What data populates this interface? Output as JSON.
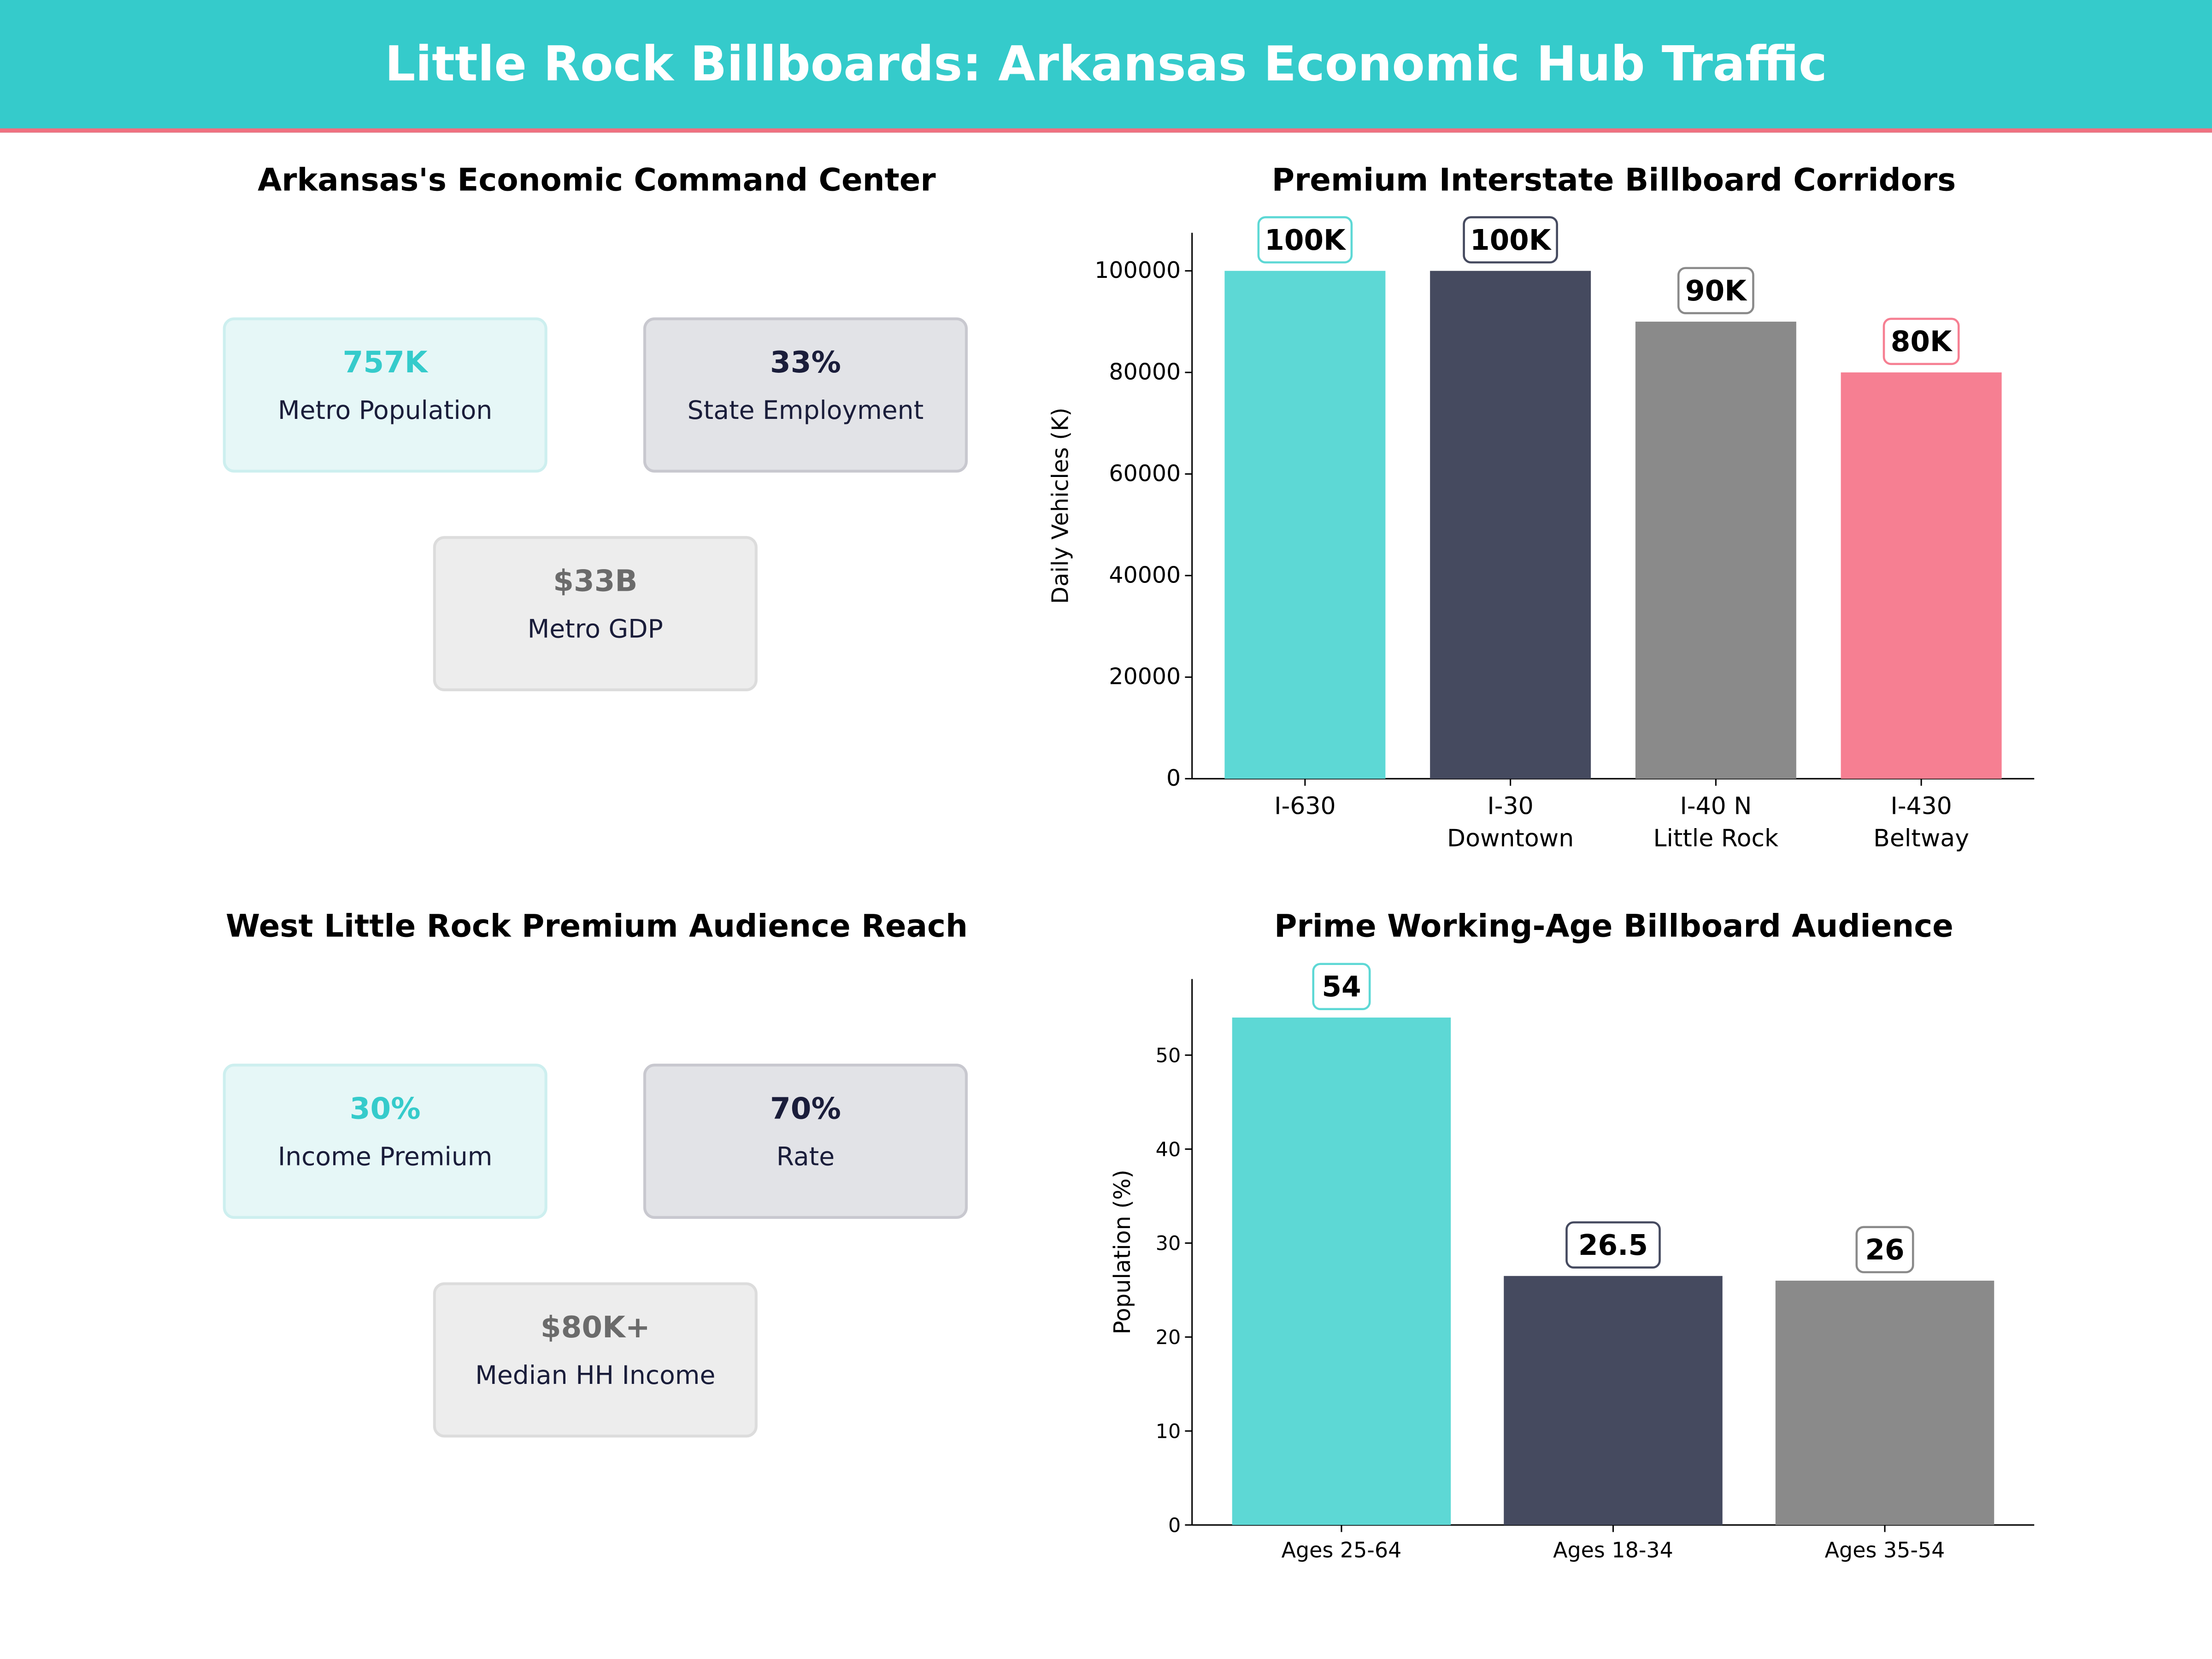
{
  "header": {
    "title": "Little Rock Billboards: Arkansas Economic Hub Traffic",
    "bg": "#35CBCB",
    "accent": "#F07080"
  },
  "panels": [
    {
      "title": "Arkansas's Economic Command Center",
      "cards": [
        {
          "value": "757K",
          "label": "Metro Population"
        },
        {
          "value": "33%",
          "label": "State Employment"
        },
        {
          "value": "$33B",
          "label": "Metro GDP"
        }
      ]
    },
    {
      "title": "West Little Rock Premium Audience Reach",
      "cards": [
        {
          "value": "30%",
          "label": "Income Premium"
        },
        {
          "value": "70%",
          "label": "Rate"
        },
        {
          "value": "$80K+",
          "label": "Median HH Income"
        }
      ]
    }
  ],
  "chart_data": [
    {
      "type": "bar",
      "title": "Premium Interstate Billboard Corridors",
      "xlabel": "",
      "ylabel": "Daily Vehicles (K)",
      "categories": [
        "I-630\n",
        "I-30\nDowntown",
        "I-40 N\nLittle Rock",
        "I-430\nBeltway"
      ],
      "values": [
        100000,
        100000,
        90000,
        80000
      ],
      "data_labels": [
        "100K",
        "100K",
        "90K",
        "80K"
      ],
      "colors": [
        "#5DD8D5",
        "#454A5F",
        "#8A8A8A",
        "#F67F92"
      ],
      "ylim": [
        0,
        107500
      ],
      "yticks": [
        0,
        20000,
        40000,
        60000,
        80000,
        100000
      ],
      "grid": false
    },
    {
      "type": "bar",
      "title": "Prime Working-Age Billboard Audience",
      "xlabel": "",
      "ylabel": "Population (%)",
      "categories": [
        "Ages 25-64",
        "Ages 18-34",
        "Ages 35-54"
      ],
      "values": [
        54,
        26.5,
        26
      ],
      "data_labels": [
        "54",
        "26.5",
        "26"
      ],
      "colors": [
        "#5DD8D5",
        "#454A5F",
        "#8A8A8A"
      ],
      "ylim": [
        0,
        58.1
      ],
      "yticks": [
        0,
        10,
        20,
        30,
        40,
        50
      ],
      "grid": false
    }
  ]
}
